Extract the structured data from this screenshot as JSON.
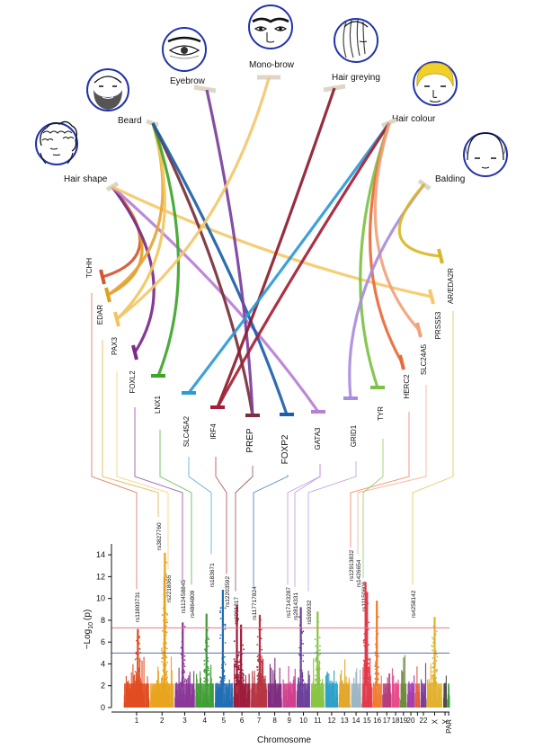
{
  "traits": [
    {
      "id": "hair-shape",
      "label": "Hair shape",
      "icon": "curly-hair-face-icon"
    },
    {
      "id": "beard",
      "label": "Beard",
      "icon": "bearded-face-icon"
    },
    {
      "id": "eyebrow",
      "label": "Eyebrow",
      "icon": "eye-eyebrow-icon"
    },
    {
      "id": "mono-brow",
      "label": "Mono-brow",
      "icon": "joined-eyebrows-icon"
    },
    {
      "id": "hair-greying",
      "label": "Hair greying",
      "icon": "grey-hair-face-icon"
    },
    {
      "id": "hair-colour",
      "label": "Hair colour",
      "icon": "blond-hair-face-icon"
    },
    {
      "id": "balding",
      "label": "Balding",
      "icon": "bald-head-icon"
    }
  ],
  "genes": [
    "TCHH",
    "EDAR",
    "PAX3",
    "FOXL2",
    "LNX1",
    "SLC45A2",
    "IRF4",
    "PREP",
    "FOXP2",
    "GATA3",
    "GRID1",
    "TYR",
    "HERC2",
    "SLC24A5",
    "PRSS53",
    "AR/EDA2R"
  ],
  "links": [
    {
      "trait": "hair-shape",
      "gene": "TCHH",
      "color": "#d4572e"
    },
    {
      "trait": "hair-shape",
      "gene": "EDAR",
      "color": "#e0a020"
    },
    {
      "trait": "hair-shape",
      "gene": "FOXL2",
      "color": "#7a2a8a"
    },
    {
      "trait": "hair-shape",
      "gene": "GATA3",
      "color": "#b87fd4"
    },
    {
      "trait": "hair-shape",
      "gene": "PRSS53",
      "color": "#f5c96a"
    },
    {
      "trait": "beard",
      "gene": "EDAR",
      "color": "#e7a43a"
    },
    {
      "trait": "beard",
      "gene": "PAX3",
      "color": "#f2c55c"
    },
    {
      "trait": "beard",
      "gene": "LNX1",
      "color": "#3ea52a"
    },
    {
      "trait": "beard",
      "gene": "PREP",
      "color": "#7a2f3a"
    },
    {
      "trait": "beard",
      "gene": "FOXP2",
      "color": "#1a5fa8"
    },
    {
      "trait": "eyebrow",
      "gene": "PREP",
      "color": "#7b3f9c"
    },
    {
      "trait": "mono-brow",
      "gene": "PAX3",
      "color": "#f4c76b"
    },
    {
      "trait": "hair-greying",
      "gene": "IRF4",
      "color": "#8e1c2e"
    },
    {
      "trait": "hair-colour",
      "gene": "SLC45A2",
      "color": "#2c9ad6"
    },
    {
      "trait": "hair-colour",
      "gene": "IRF4",
      "color": "#a41f35"
    },
    {
      "trait": "hair-colour",
      "gene": "TYR",
      "color": "#7cc242"
    },
    {
      "trait": "hair-colour",
      "gene": "HERC2",
      "color": "#e86a3a"
    },
    {
      "trait": "hair-colour",
      "gene": "SLC24A5",
      "color": "#f1a27a"
    },
    {
      "trait": "balding",
      "gene": "GRID1",
      "color": "#a98ce0"
    },
    {
      "trait": "balding",
      "gene": "AR/EDA2R",
      "color": "#d8b829"
    }
  ],
  "snps": [
    "rs11803731",
    "rs3827760",
    "rs2218065",
    "rs112458845",
    "rs4864809",
    "rs183671",
    "rs12203592",
    "rs6901317",
    "rs117717824",
    "rs17143287",
    "rs2814331",
    "rs599932",
    "rs12913832",
    "rs1426654",
    "rs11150606",
    "rs4258142"
  ],
  "manhattan": {
    "ylabel": "−Log",
    "ylabel_sub": "10",
    "ylabel_tail": "(p)",
    "xlabel": "Chromosome",
    "yticks": [
      0,
      2,
      4,
      6,
      8,
      10,
      12,
      14
    ],
    "ylim": [
      0,
      15
    ],
    "chromosomes": [
      "1",
      "2",
      "3",
      "4",
      "5",
      "6",
      "7",
      "8",
      "9",
      "10",
      "11",
      "12",
      "13",
      "14",
      "15",
      "16",
      "17",
      "18",
      "19",
      "20",
      "21",
      "22",
      "X",
      "Y",
      "PAR"
    ],
    "chrom_colors": [
      "#e04a1e",
      "#e7a21b",
      "#8a3596",
      "#3e9c34",
      "#1f6cb3",
      "#9d1a3a",
      "#b73240",
      "#7d2a7e",
      "#d13c8c",
      "#6a3d9a",
      "#86c440",
      "#2ba0c8",
      "#e2a72a",
      "#9ab6c2",
      "#e23a4a",
      "#f07a2a",
      "#b53a7a",
      "#e84a8a",
      "#6a8a3a",
      "#a33ab2",
      "#e05a3a",
      "#7a3a9a",
      "#e2b02a",
      "#4a4a4a",
      "#3a9a3a"
    ],
    "thresholds": [
      {
        "value": 7.3,
        "color": "#e37a8a"
      },
      {
        "value": 5.0,
        "color": "#5a6eb0"
      }
    ]
  }
}
